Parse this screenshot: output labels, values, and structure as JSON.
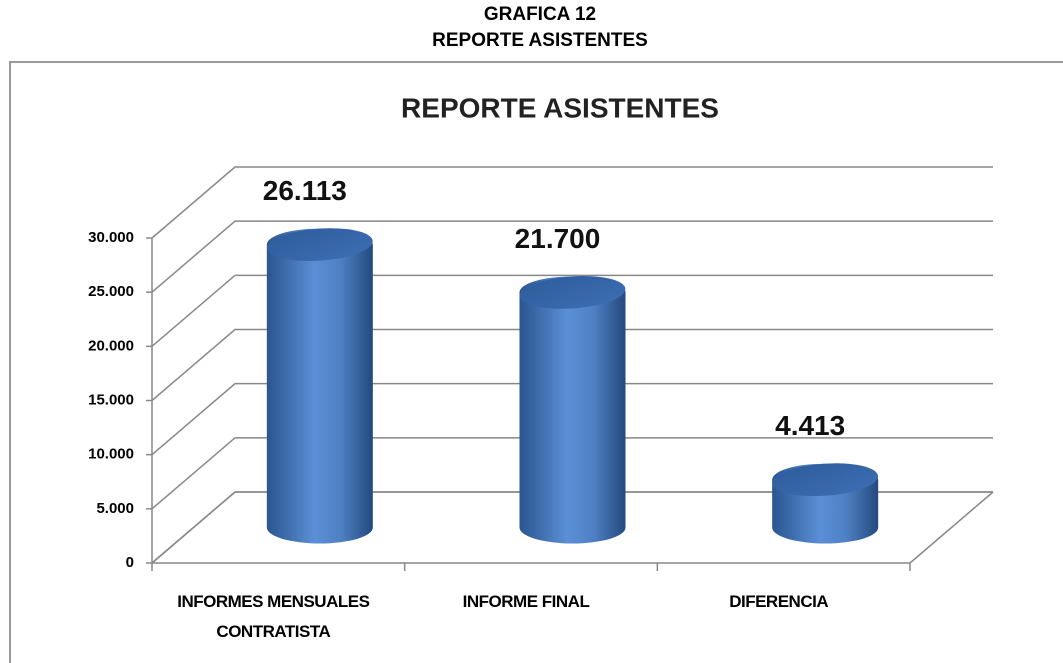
{
  "header": {
    "line1": "GRAFICA 12",
    "line2": "REPORTE ASISTENTES"
  },
  "chart_data": {
    "type": "bar",
    "title": "REPORTE ASISTENTES",
    "categories": [
      "INFORMES MENSUALES CONTRATISTA",
      "INFORME FINAL",
      "DIFERENCIA"
    ],
    "values": [
      26113,
      21700,
      4413
    ],
    "value_labels": [
      "26.113",
      "21.700",
      "4.413"
    ],
    "color": "#4f81bd",
    "ylim": [
      0,
      30000
    ],
    "yticks": [
      0,
      {
        "value": 5000,
        "label": "5.000"
      },
      {
        "value": 10000,
        "label": "10.000"
      },
      {
        "value": 15000,
        "label": "15.000"
      },
      {
        "value": 20000,
        "label": "20.000"
      },
      {
        "value": 25000,
        "label": "25.000"
      },
      {
        "value": 30000,
        "label": "30.000"
      }
    ],
    "grid": true
  }
}
